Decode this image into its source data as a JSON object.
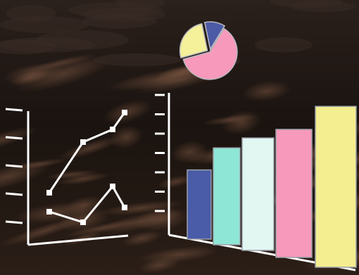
{
  "chart_data": [
    {
      "type": "line",
      "x": [
        1,
        2,
        3,
        4
      ],
      "series": [
        {
          "values": [
            2.2,
            4.6,
            5.2,
            6.0
          ],
          "color": "#ffffff"
        },
        {
          "values": [
            1.3,
            0.8,
            2.5,
            1.5
          ],
          "color": "#ffffff"
        }
      ],
      "ylim": [
        0,
        8
      ],
      "y_tick_count": 5,
      "grid": false
    },
    {
      "type": "pie",
      "values": [
        62,
        26,
        12
      ],
      "colors": [
        "#f799ba",
        "#f5f09a",
        "#4d5aa5"
      ]
    },
    {
      "type": "bar",
      "values": [
        4.0,
        5.6,
        6.5,
        7.4,
        9.3
      ],
      "colors": [
        "#4a5ba8",
        "#8ee7d6",
        "#e3f7f2",
        "#f799ba",
        "#f4ee90"
      ],
      "ylim": [
        0,
        10
      ],
      "y_tick_count": 7,
      "grid": false
    }
  ],
  "background": {
    "style": "dark cloudy night sky",
    "base_color": "#1c1410",
    "cloud_color": "#6a4a38"
  },
  "axis_color": "#ffffff"
}
